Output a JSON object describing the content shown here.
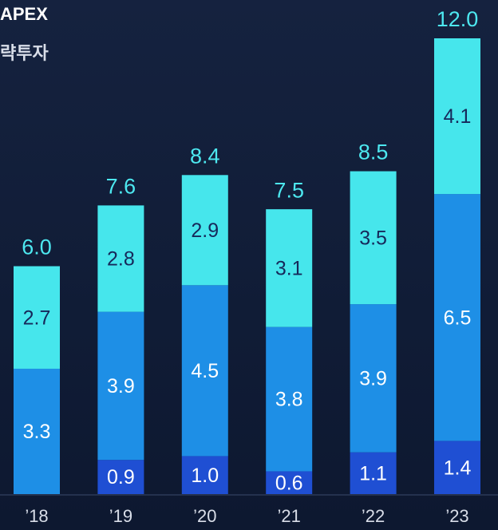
{
  "chart_data": {
    "type": "stacked_bar",
    "title": "APEX",
    "subtitle": "략투자",
    "categories": [
      "’18",
      "’19",
      "’20",
      "’21",
      "’22",
      "’23"
    ],
    "series": [
      {
        "color": "#1f4fd3",
        "values": [
          null,
          0.9,
          1.0,
          0.6,
          1.1,
          1.4
        ],
        "value_labels": [
          null,
          "0.9",
          "1.0",
          "0.6",
          "1.1",
          "1.4"
        ]
      },
      {
        "color": "#1e8fe6",
        "values": [
          3.3,
          3.9,
          4.5,
          3.8,
          3.9,
          6.5
        ],
        "value_labels": [
          "3.3",
          "3.9",
          "4.5",
          "3.8",
          "3.9",
          "6.5"
        ]
      },
      {
        "color": "#46e6ec",
        "values": [
          2.7,
          2.8,
          2.9,
          3.1,
          3.5,
          4.1
        ],
        "value_labels": [
          "2.7",
          "2.8",
          "2.9",
          "3.1",
          "3.5",
          "4.1"
        ]
      }
    ],
    "totals": [
      6.0,
      7.6,
      8.4,
      7.5,
      8.5,
      12.0
    ],
    "totals_labels": [
      "6.0",
      "7.6",
      "8.4",
      "7.5",
      "8.5",
      "12.0"
    ],
    "ylim": [
      0,
      12
    ]
  }
}
